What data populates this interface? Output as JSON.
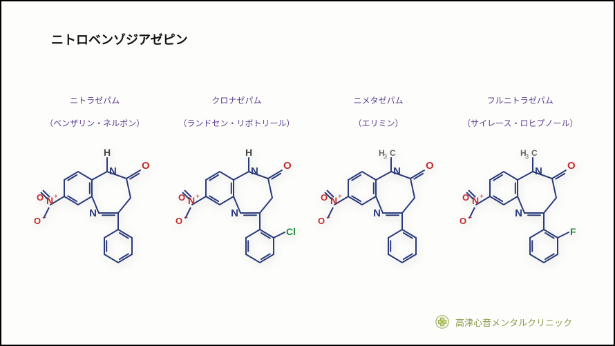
{
  "title": "ニトロベンゾジアゼピン",
  "molecules": [
    {
      "name": "ニトラゼパム",
      "brands": "（ベンザリン・ネルボン）",
      "variant": "h_phenyl"
    },
    {
      "name": "クロナゼパム",
      "brands": "（ランドセン・リボトリール）",
      "variant": "h_chloro"
    },
    {
      "name": "ニメタゼパム",
      "brands": "（エリミン）",
      "variant": "ch3_phenyl"
    },
    {
      "name": "フルニトラゼパム",
      "brands": "（サイレース・ロヒプノール）",
      "variant": "ch3_fluoro"
    }
  ],
  "clinic": "高津心音メンタルクリニック",
  "style": {
    "title_color": "#111",
    "label_color": "#5a3a8f",
    "bond_color": "#2a3a7a",
    "nitro_color": "#c02a2a",
    "hetero_N": "#2a3a7a",
    "hetero_O": "#c02a2a",
    "hetero_Cl": "#1a8a3a",
    "hetero_F": "#1a8a3a",
    "ch3_color": "#666",
    "logo_color": "#8a9a4a",
    "background": "#fdfdfb",
    "font_family": "Hiragino Sans, Meiryo, sans-serif",
    "label_fontsize": 12,
    "title_fontsize": 18
  }
}
